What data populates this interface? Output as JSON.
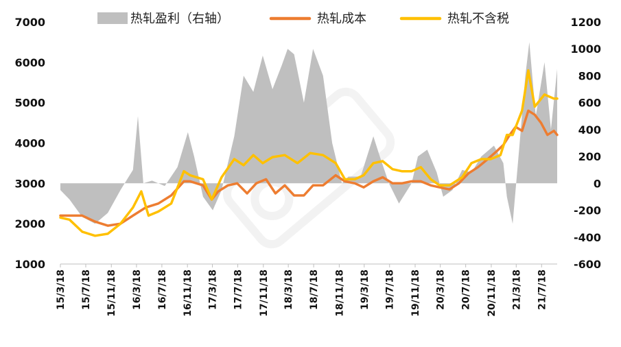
{
  "chart_data": {
    "type": "line",
    "title": "",
    "x_ticks": [
      "15/3/18",
      "15/7/18",
      "15/11/18",
      "16/3/18",
      "16/7/18",
      "16/11/18",
      "17/3/18",
      "17/7/18",
      "17/11/18",
      "18/3/18",
      "18/7/18",
      "18/11/18",
      "19/3/18",
      "19/7/18",
      "19/11/18",
      "20/3/18",
      "20/7/18",
      "20/11/18",
      "21/3/18",
      "21/7/18"
    ],
    "x_range": [
      "15/3/18",
      "21/10/1"
    ],
    "y_left": {
      "lim": [
        1000,
        7000
      ],
      "ticks": [
        "1000",
        "2000",
        "3000",
        "4000",
        "5000",
        "6000",
        "7000"
      ]
    },
    "y_right": {
      "lim": [
        -600,
        1200
      ],
      "ticks": [
        "-600",
        "-400",
        "-200",
        "0",
        "200",
        "400",
        "600",
        "800",
        "1000",
        "1200"
      ]
    },
    "legend": {
      "placement": "top",
      "entries": [
        {
          "name": "热轧盈利（右轴）",
          "kind": "area"
        },
        {
          "name": "热轧成本",
          "kind": "line"
        },
        {
          "name": "热轧不含税",
          "kind": "line"
        }
      ]
    },
    "grid": false,
    "series": [
      {
        "name": "热轧盈利（右轴）",
        "axis": "right",
        "style": "area",
        "color": "#bfbfbf",
        "x": [
          "15/3/18",
          "15/5/1",
          "15/7/1",
          "15/9/1",
          "15/11/1",
          "16/1/1",
          "16/3/1",
          "16/3/25",
          "16/4/20",
          "16/6/1",
          "16/8/1",
          "16/10/1",
          "16/11/20",
          "16/12/20",
          "17/2/1",
          "17/3/20",
          "17/5/1",
          "17/7/1",
          "17/8/15",
          "17/10/1",
          "17/11/15",
          "18/1/1",
          "18/2/15",
          "18/3/15",
          "18/4/15",
          "18/6/1",
          "18/7/15",
          "18/9/1",
          "18/10/15",
          "18/12/1",
          "19/1/1",
          "19/3/1",
          "19/5/1",
          "19/6/1",
          "19/7/15",
          "19/9/1",
          "19/11/1",
          "19/12/1",
          "20/1/15",
          "20/3/1",
          "20/4/1",
          "20/5/15",
          "20/7/1",
          "20/8/15",
          "20/10/1",
          "20/12/1",
          "21/1/15",
          "21/2/1",
          "21/3/1",
          "21/4/1",
          "21/5/1",
          "21/5/20",
          "21/6/20",
          "21/8/1",
          "21/9/1",
          "21/10/1"
        ],
        "y": [
          -50,
          -120,
          -250,
          -300,
          -220,
          -50,
          100,
          500,
          0,
          20,
          -20,
          120,
          380,
          200,
          -100,
          -200,
          -50,
          350,
          800,
          680,
          950,
          700,
          880,
          1000,
          960,
          600,
          1000,
          800,
          300,
          0,
          50,
          50,
          350,
          200,
          0,
          -150,
          0,
          200,
          250,
          80,
          -100,
          -50,
          100,
          80,
          200,
          280,
          150,
          -100,
          -300,
          250,
          800,
          1050,
          500,
          900,
          400,
          850
        ]
      },
      {
        "name": "热轧成本",
        "axis": "left",
        "style": "line",
        "color": "#ed7d31",
        "x": [
          "15/3/18",
          "15/5/1",
          "15/7/1",
          "15/9/1",
          "15/11/1",
          "16/1/1",
          "16/3/1",
          "16/5/1",
          "16/7/1",
          "16/9/1",
          "16/11/1",
          "16/12/1",
          "17/2/1",
          "17/3/15",
          "17/4/15",
          "17/6/1",
          "17/7/15",
          "17/9/1",
          "17/10/15",
          "17/12/1",
          "18/1/15",
          "18/3/1",
          "18/4/15",
          "18/6/1",
          "18/7/15",
          "18/9/1",
          "18/11/1",
          "18/12/15",
          "19/2/1",
          "19/3/15",
          "19/5/1",
          "19/6/15",
          "19/8/1",
          "19/9/15",
          "19/11/1",
          "19/12/15",
          "20/2/1",
          "20/3/15",
          "20/5/1",
          "20/6/15",
          "20/8/1",
          "20/9/15",
          "20/11/1",
          "20/12/15",
          "21/1/15",
          "21/2/15",
          "21/3/15",
          "21/4/15",
          "21/5/15",
          "21/6/15",
          "21/7/15",
          "21/8/15",
          "21/9/15",
          "21/10/1"
        ],
        "y": [
          2200,
          2200,
          2200,
          2050,
          1950,
          2000,
          2200,
          2400,
          2500,
          2700,
          3050,
          3050,
          2950,
          2600,
          2800,
          2950,
          3000,
          2750,
          3000,
          3100,
          2750,
          2950,
          2700,
          2700,
          2950,
          2950,
          3200,
          3050,
          3000,
          2900,
          3050,
          3150,
          3000,
          3000,
          3050,
          3050,
          2950,
          2900,
          2850,
          3000,
          3250,
          3400,
          3600,
          3800,
          3950,
          4200,
          4400,
          4300,
          4800,
          4700,
          4500,
          4200,
          4300,
          4200
        ]
      },
      {
        "name": "热轧不含税",
        "axis": "left",
        "style": "line",
        "color": "#ffc000",
        "x": [
          "15/3/18",
          "15/5/1",
          "15/7/1",
          "15/9/1",
          "15/11/1",
          "16/1/1",
          "16/3/1",
          "16/4/10",
          "16/5/15",
          "16/7/1",
          "16/9/1",
          "16/11/1",
          "16/12/1",
          "17/2/1",
          "17/3/15",
          "17/5/1",
          "17/7/1",
          "17/8/15",
          "17/10/1",
          "17/11/15",
          "18/1/1",
          "18/3/1",
          "18/5/1",
          "18/7/1",
          "18/9/1",
          "18/11/1",
          "18/12/15",
          "19/2/1",
          "19/3/15",
          "19/5/1",
          "19/6/15",
          "19/8/1",
          "19/9/15",
          "19/11/1",
          "19/12/15",
          "20/2/1",
          "20/3/15",
          "20/5/1",
          "20/7/1",
          "20/8/15",
          "20/10/1",
          "20/11/15",
          "21/1/1",
          "21/2/1",
          "21/3/1",
          "21/4/15",
          "21/5/15",
          "21/6/15",
          "21/8/1",
          "21/9/15",
          "21/10/1"
        ],
        "y": [
          2150,
          2100,
          1800,
          1700,
          1750,
          2000,
          2400,
          2800,
          2200,
          2300,
          2500,
          3300,
          3200,
          3100,
          2600,
          3150,
          3600,
          3450,
          3700,
          3500,
          3650,
          3700,
          3500,
          3750,
          3700,
          3500,
          3100,
          3100,
          3200,
          3500,
          3550,
          3350,
          3300,
          3300,
          3400,
          3100,
          2950,
          2950,
          3150,
          3500,
          3600,
          3600,
          3700,
          4200,
          4200,
          4800,
          5800,
          4900,
          5200,
          5100,
          5100
        ]
      }
    ]
  }
}
